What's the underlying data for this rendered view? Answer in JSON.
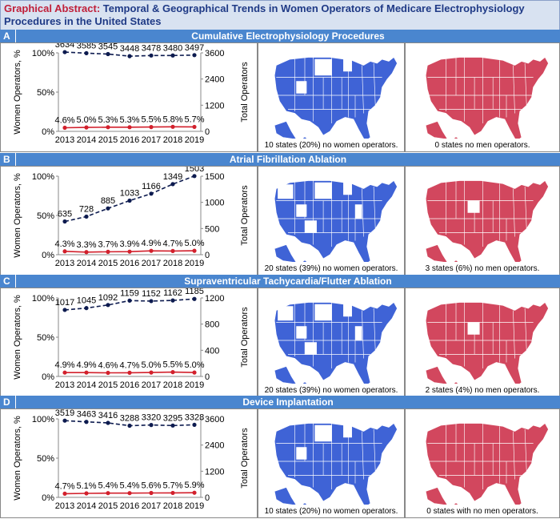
{
  "header": {
    "prefix": "Graphical Abstract:",
    "line1": "Temporal & Geographical Trends in Women Operators of Medicare Electrophysiology",
    "line2": "Procedures in the United States"
  },
  "colors": {
    "header_bar": "#4a86cf",
    "title_bg": "#d8e2f1",
    "women_line": "#d2202c",
    "total_line": "#0d1b4f",
    "map_women": "#3f63d6",
    "map_men": "#d2475e"
  },
  "sections": [
    {
      "letter": "A",
      "title": "Cumulative Electrophysiology Procedures",
      "women_map_caption": "10 states (20%) no women operators.",
      "men_map_caption": "0 states no men operators."
    },
    {
      "letter": "B",
      "title": "Atrial Fibrillation Ablation",
      "women_map_caption": "20 states (39%) no women operators.",
      "men_map_caption": "3 states (6%) no men operators."
    },
    {
      "letter": "C",
      "title": "Supraventricular Tachycardia/Flutter Ablation",
      "women_map_caption": "20 states (39%) no women operators.",
      "men_map_caption": "2 states (4%) no men operators."
    },
    {
      "letter": "D",
      "title": "Device Implantation",
      "women_map_caption": "10 states (20%) no women operators.",
      "men_map_caption": "0 states with no men operators."
    }
  ],
  "chart_data": [
    {
      "type": "line",
      "panel": "A",
      "x": [
        "2013",
        "2014",
        "2015",
        "2016",
        "2017",
        "2018",
        "2019"
      ],
      "ylabel_left": "Women Operators, %",
      "ylabel_right": "Total Operators",
      "left_ticks": [
        "0%",
        "50%",
        "100%"
      ],
      "right_ticks": [
        "0",
        "1200",
        "2400",
        "3600"
      ],
      "ylim_left": [
        0,
        100
      ],
      "ylim_right": [
        0,
        3600
      ],
      "series": [
        {
          "name": "Total Operators",
          "axis": "right",
          "style": "dashed",
          "values": [
            3634,
            3585,
            3545,
            3448,
            3478,
            3480,
            3497
          ],
          "labels": [
            "3634",
            "3585",
            "3545",
            "3448",
            "3478",
            "3480",
            "3497"
          ]
        },
        {
          "name": "Women Operators %",
          "axis": "left",
          "style": "solid",
          "values": [
            4.6,
            5.0,
            5.3,
            5.3,
            5.5,
            5.8,
            5.7
          ],
          "labels": [
            "4.6%",
            "5.0%",
            "5.3%",
            "5.3%",
            "5.5%",
            "5.8%",
            "5.7%"
          ]
        }
      ]
    },
    {
      "type": "line",
      "panel": "B",
      "x": [
        "2013",
        "2014",
        "2015",
        "2016",
        "2017",
        "2018",
        "2019"
      ],
      "ylabel_left": "Women Operators, %",
      "ylabel_right": "Total Operators",
      "left_ticks": [
        "0%",
        "50%",
        "100%"
      ],
      "right_ticks": [
        "0",
        "500",
        "1000",
        "1500"
      ],
      "ylim_left": [
        0,
        100
      ],
      "ylim_right": [
        0,
        1500
      ],
      "series": [
        {
          "name": "Total Operators",
          "axis": "right",
          "style": "dashed",
          "values": [
            635,
            728,
            885,
            1033,
            1166,
            1349,
            1503
          ],
          "labels": [
            "635",
            "728",
            "885",
            "1033",
            "1166",
            "1349",
            "1503"
          ]
        },
        {
          "name": "Women Operators %",
          "axis": "left",
          "style": "solid",
          "values": [
            4.3,
            3.3,
            3.7,
            3.9,
            4.9,
            4.7,
            5.0
          ],
          "labels": [
            "4.3%",
            "3.3%",
            "3.7%",
            "3.9%",
            "4.9%",
            "4.7%",
            "5.0%"
          ]
        }
      ]
    },
    {
      "type": "line",
      "panel": "C",
      "x": [
        "2013",
        "2014",
        "2015",
        "2016",
        "2017",
        "2018",
        "2019"
      ],
      "ylabel_left": "Women Operators, %",
      "ylabel_right": "Total Operators",
      "left_ticks": [
        "0%",
        "50%",
        "100%"
      ],
      "right_ticks": [
        "0",
        "400",
        "800",
        "1200"
      ],
      "ylim_left": [
        0,
        100
      ],
      "ylim_right": [
        0,
        1200
      ],
      "series": [
        {
          "name": "Total Operators",
          "axis": "right",
          "style": "dashed",
          "values": [
            1017,
            1045,
            1092,
            1159,
            1152,
            1162,
            1185
          ],
          "labels": [
            "1017",
            "1045",
            "1092",
            "1159",
            "1152",
            "1162",
            "1185"
          ]
        },
        {
          "name": "Women Operators %",
          "axis": "left",
          "style": "solid",
          "values": [
            4.9,
            4.9,
            4.6,
            4.7,
            5.0,
            5.5,
            5.0
          ],
          "labels": [
            "4.9%",
            "4.9%",
            "4.6%",
            "4.7%",
            "5.0%",
            "5.5%",
            "5.0%"
          ]
        }
      ]
    },
    {
      "type": "line",
      "panel": "D",
      "x": [
        "2013",
        "2014",
        "2015",
        "2016",
        "2017",
        "2018",
        "2019"
      ],
      "ylabel_left": "Women Operators, %",
      "ylabel_right": "Total Operators",
      "left_ticks": [
        "0%",
        "50%",
        "100%"
      ],
      "right_ticks": [
        "0",
        "1200",
        "2400",
        "3600"
      ],
      "ylim_left": [
        0,
        100
      ],
      "ylim_right": [
        0,
        3600
      ],
      "series": [
        {
          "name": "Total Operators",
          "axis": "right",
          "style": "dashed",
          "values": [
            3519,
            3463,
            3416,
            3288,
            3320,
            3295,
            3328
          ],
          "labels": [
            "3519",
            "3463",
            "3416",
            "3288",
            "3320",
            "3295",
            "3328"
          ]
        },
        {
          "name": "Women Operators %",
          "axis": "left",
          "style": "solid",
          "values": [
            4.7,
            5.1,
            5.4,
            5.4,
            5.6,
            5.7,
            5.9
          ],
          "labels": [
            "4.7%",
            "5.1%",
            "5.4%",
            "5.4%",
            "5.6%",
            "5.7%",
            "5.9%"
          ]
        }
      ]
    }
  ]
}
